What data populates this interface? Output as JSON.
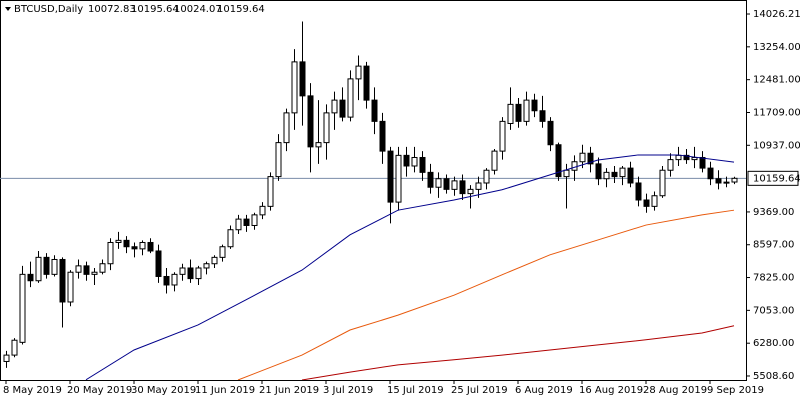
{
  "chart_data": {
    "type": "candlestick",
    "title": "BTCUSD,Daily",
    "ylim": [
      5414,
      14356
    ],
    "yticks": [
      14026.21,
      {
        "value": 13254,
        "label": "13254.00"
      },
      {
        "value": 12481,
        "label": "12481.00"
      },
      {
        "value": 11709,
        "label": "11709.00"
      },
      {
        "value": 10937,
        "label": "10937.00"
      },
      {
        "value": 9369,
        "label": "9369.00"
      },
      {
        "value": 8597,
        "label": "8597.00"
      },
      {
        "value": 7825,
        "label": "7825.00"
      },
      {
        "value": 7053,
        "label": "7053.00"
      },
      {
        "value": 6280,
        "label": "6280.00"
      },
      {
        "value": 5508.6,
        "label": "5508.60"
      }
    ],
    "categories": [
      "8 May 2019",
      null,
      null,
      null,
      null,
      null,
      null,
      null,
      "20 May 2019",
      null,
      null,
      null,
      null,
      null,
      null,
      null,
      "30 May 2019",
      null,
      null,
      null,
      null,
      null,
      null,
      null,
      "11 Jun 2019",
      null,
      null,
      null,
      null,
      null,
      null,
      null,
      "21 Jun 2019",
      null,
      null,
      null,
      null,
      null,
      null,
      null,
      "3 Jul 2019",
      null,
      null,
      null,
      null,
      null,
      null,
      null,
      "15 Jul 2019",
      null,
      null,
      null,
      null,
      null,
      null,
      null,
      "25 Jul 2019",
      null,
      null,
      null,
      null,
      null,
      null,
      null,
      "6 Aug 2019",
      null,
      null,
      null,
      null,
      null,
      null,
      null,
      "16 Aug 2019",
      null,
      null,
      null,
      null,
      null,
      null,
      null,
      "28 Aug 2019",
      null,
      null,
      null,
      null,
      null,
      null,
      null,
      "9 Sep 2019",
      null,
      null,
      null
    ],
    "series": [
      {
        "type": "candlestick",
        "up_color": "#ffffff",
        "down_color": "#000000",
        "values": [
          [
            5850,
            6100,
            5700,
            6000
          ],
          [
            6000,
            6400,
            5950,
            6350
          ],
          [
            6300,
            8100,
            6250,
            7900
          ],
          [
            7900,
            8200,
            7600,
            7750
          ],
          [
            7750,
            8450,
            7700,
            8300
          ],
          [
            8300,
            8400,
            7800,
            7900
          ],
          [
            7900,
            8350,
            7850,
            8250
          ],
          [
            8250,
            8300,
            6650,
            7250
          ],
          [
            7250,
            8000,
            7150,
            7950
          ],
          [
            7950,
            8250,
            7800,
            8100
          ],
          [
            8100,
            8200,
            7750,
            7900
          ],
          [
            7900,
            8050,
            7650,
            7950
          ],
          [
            7950,
            8250,
            7900,
            8150
          ],
          [
            8150,
            8750,
            8000,
            8650
          ],
          [
            8650,
            8900,
            8500,
            8700
          ],
          [
            8700,
            8800,
            8400,
            8550
          ],
          [
            8550,
            8650,
            8300,
            8500
          ],
          [
            8500,
            8700,
            8350,
            8650
          ],
          [
            8650,
            8750,
            8400,
            8450
          ],
          [
            8450,
            8600,
            7700,
            7850
          ],
          [
            7850,
            8050,
            7450,
            7650
          ],
          [
            7650,
            7950,
            7500,
            7900
          ],
          [
            7900,
            8150,
            7750,
            8050
          ],
          [
            8050,
            8250,
            7700,
            7800
          ],
          [
            7800,
            8100,
            7650,
            8050
          ],
          [
            8050,
            8200,
            7900,
            8150
          ],
          [
            8150,
            8350,
            8050,
            8300
          ],
          [
            8300,
            8600,
            8200,
            8550
          ],
          [
            8550,
            9050,
            8500,
            8950
          ],
          [
            8950,
            9300,
            8850,
            9200
          ],
          [
            9200,
            9300,
            8900,
            9050
          ],
          [
            9050,
            9350,
            8950,
            9300
          ],
          [
            9300,
            9600,
            9200,
            9500
          ],
          [
            9500,
            10300,
            9400,
            10200
          ],
          [
            10200,
            11200,
            10100,
            11000
          ],
          [
            11000,
            11800,
            10800,
            11700
          ],
          [
            11700,
            13200,
            11300,
            12900
          ],
          [
            12900,
            13850,
            11400,
            12100
          ],
          [
            12100,
            12400,
            10300,
            10900
          ],
          [
            10900,
            12000,
            10500,
            11000
          ],
          [
            11000,
            11900,
            10600,
            11700
          ],
          [
            11700,
            12200,
            11300,
            12000
          ],
          [
            12000,
            12300,
            11500,
            11600
          ],
          [
            11600,
            12700,
            11500,
            12500
          ],
          [
            12500,
            13050,
            12000,
            12800
          ],
          [
            12800,
            12900,
            11800,
            12000
          ],
          [
            12000,
            12300,
            11200,
            11500
          ],
          [
            11500,
            11700,
            10500,
            10800
          ],
          [
            10800,
            10900,
            9100,
            9600
          ],
          [
            9600,
            10900,
            9400,
            10700
          ],
          [
            10700,
            10900,
            10200,
            10450
          ],
          [
            10450,
            10900,
            10300,
            10650
          ],
          [
            10650,
            10800,
            10100,
            10300
          ],
          [
            10300,
            10500,
            9800,
            9950
          ],
          [
            9950,
            10300,
            9700,
            10150
          ],
          [
            10150,
            10250,
            9800,
            9900
          ],
          [
            9900,
            10200,
            9750,
            10100
          ],
          [
            10100,
            10250,
            9650,
            9800
          ],
          [
            9800,
            10000,
            9450,
            9900
          ],
          [
            9900,
            10200,
            9700,
            10050
          ],
          [
            10050,
            10400,
            9900,
            10350
          ],
          [
            10350,
            10850,
            10250,
            10800
          ],
          [
            10800,
            11600,
            10600,
            11500
          ],
          [
            11450,
            12300,
            11300,
            11900
          ],
          [
            11900,
            12050,
            11350,
            11500
          ],
          [
            11500,
            12200,
            11400,
            12000
          ],
          [
            12000,
            12150,
            11600,
            11750
          ],
          [
            11750,
            12100,
            11350,
            11500
          ],
          [
            11500,
            11600,
            10800,
            10950
          ],
          [
            10950,
            11000,
            10100,
            10200
          ],
          [
            10200,
            10500,
            9450,
            10350
          ],
          [
            10350,
            10700,
            10100,
            10550
          ],
          [
            10550,
            10950,
            10400,
            10750
          ],
          [
            10750,
            10900,
            10300,
            10500
          ],
          [
            10500,
            10650,
            10000,
            10150
          ],
          [
            10150,
            10400,
            9950,
            10300
          ],
          [
            10300,
            10450,
            10050,
            10200
          ],
          [
            10200,
            10450,
            10000,
            10400
          ],
          [
            10400,
            10550,
            9950,
            10050
          ],
          [
            10050,
            10200,
            9500,
            9650
          ],
          [
            9650,
            9800,
            9350,
            9500
          ],
          [
            9500,
            9850,
            9400,
            9750
          ],
          [
            9750,
            10450,
            9700,
            10350
          ],
          [
            10350,
            10750,
            10200,
            10600
          ],
          [
            10600,
            10900,
            10450,
            10700
          ],
          [
            10700,
            10850,
            10500,
            10600
          ],
          [
            10600,
            10900,
            10400,
            10650
          ],
          [
            10650,
            10800,
            10300,
            10400
          ],
          [
            10400,
            10550,
            10000,
            10150
          ],
          [
            10150,
            10350,
            9900,
            10050
          ],
          [
            10050,
            10200,
            9950,
            10070
          ],
          [
            10072.83,
            10195.64,
            10024.07,
            10159.64
          ]
        ]
      },
      {
        "type": "line",
        "color": "#00008b",
        "x": [
          10,
          16,
          24,
          30,
          37,
          43,
          49,
          56,
          62,
          68,
          74,
          79,
          84,
          91
        ],
        "values": [
          5420,
          6120,
          6710,
          7300,
          8000,
          8830,
          9410,
          9650,
          9890,
          10240,
          10590,
          10710,
          10710,
          10540
        ]
      },
      {
        "type": "line",
        "color": "#e8590c",
        "x": [
          29,
          37,
          43,
          49,
          56,
          62,
          68,
          74,
          80,
          87,
          91
        ],
        "values": [
          5414,
          6000,
          6590,
          6940,
          7410,
          7890,
          8360,
          8710,
          9060,
          9300,
          9410
        ]
      },
      {
        "type": "line",
        "color": "#b00000",
        "x": [
          37,
          43,
          49,
          56,
          62,
          68,
          74,
          80,
          87,
          91
        ],
        "values": [
          5414,
          5600,
          5770,
          5890,
          6000,
          6120,
          6240,
          6360,
          6520,
          6690
        ]
      }
    ],
    "last_price_color": "#7a8ba8"
  }
}
